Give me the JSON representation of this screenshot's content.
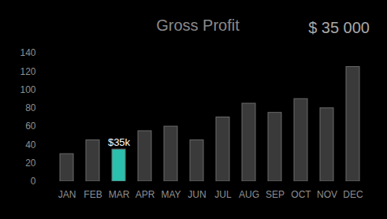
{
  "chart_data": {
    "type": "bar",
    "title": "Gross Profit",
    "annotation": "$ 35 000",
    "categories": [
      "JAN",
      "FEB",
      "MAR",
      "APR",
      "MAY",
      "JUN",
      "JUL",
      "AUG",
      "SEP",
      "OCT",
      "NOV",
      "DEC"
    ],
    "values": [
      30,
      45,
      35,
      55,
      60,
      45,
      70,
      85,
      75,
      90,
      80,
      125
    ],
    "colors": [
      "#3a3a3a",
      "#3a3a3a",
      "#2bbfad",
      "#3a3a3a",
      "#3a3a3a",
      "#3a3a3a",
      "#3a3a3a",
      "#3a3a3a",
      "#3a3a3a",
      "#3a3a3a",
      "#3a3a3a",
      "#3a3a3a"
    ],
    "data_labels": true,
    "value_labels": [
      null,
      null,
      "$35k",
      null,
      null,
      null,
      null,
      null,
      null,
      null,
      null,
      null
    ],
    "ylim": [
      0,
      140
    ],
    "yticks": [
      0,
      20,
      40,
      60,
      80,
      100,
      120,
      140
    ],
    "grid": false
  }
}
